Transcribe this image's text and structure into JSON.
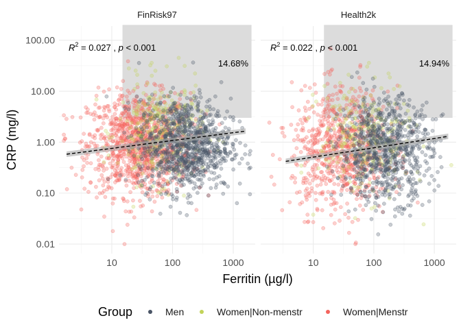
{
  "chart_data": {
    "type": "scatter",
    "x_scale": "log10",
    "y_scale": "log10",
    "xlabel": "Ferritin (µg/l)",
    "ylabel": "CRP (mg/l)",
    "x_ticks": [
      10,
      100,
      1000
    ],
    "x_tick_labels": [
      "10",
      "100",
      "1000"
    ],
    "y_ticks": [
      0.01,
      0.1,
      1,
      10,
      100
    ],
    "y_tick_labels": [
      "0.01",
      "0.10",
      "1.00",
      "10.00",
      "100.00"
    ],
    "xlim": [
      1.35,
      2300
    ],
    "ylim": [
      0.0065,
      190
    ],
    "grid": true,
    "legend": {
      "title": "Group",
      "position": "bottom",
      "entries": [
        {
          "label": "Men",
          "color": "#4a5566"
        },
        {
          "label": "Women|Non-menstr",
          "color": "#c2d35a"
        },
        {
          "label": "Women|Menstr",
          "color": "#f4645d"
        }
      ]
    },
    "highlight_region": {
      "x": [
        15,
        2000
      ],
      "y": [
        3,
        200
      ],
      "color": "#dcdcdc"
    },
    "panels": [
      {
        "title": "FinRisk97",
        "r2_label": "R",
        "r2_sup": "2",
        "r2_value": " = 0.027 , ",
        "p_label": "p",
        "p_value": " < 0.001",
        "highlight_percent": "14.68%",
        "trend": {
          "x": [
            1.8,
            1600
          ],
          "y": [
            0.58,
            1.65
          ]
        },
        "clouds": [
          {
            "group": "Women|Menstr",
            "n": 1100,
            "log_x_mean": 1.45,
            "log_x_sd": 0.42,
            "log_y_mean": -0.05,
            "log_y_sd": 0.5
          },
          {
            "group": "Women|Non-menstr",
            "n": 320,
            "log_x_mean": 1.8,
            "log_x_sd": 0.35,
            "log_y_mean": 0.2,
            "log_y_sd": 0.5
          },
          {
            "group": "Men",
            "n": 1050,
            "log_x_mean": 2.2,
            "log_x_sd": 0.38,
            "log_y_mean": -0.05,
            "log_y_sd": 0.45
          }
        ]
      },
      {
        "title": "Health2k",
        "r2_label": "R",
        "r2_sup": "2",
        "r2_value": " = 0.022 , ",
        "p_label": "p",
        "p_value": " < 0.001",
        "highlight_percent": "14.94%",
        "trend": {
          "x": [
            3.5,
            1700
          ],
          "y": [
            0.42,
            1.3
          ]
        },
        "clouds": [
          {
            "group": "Women|Menstr",
            "n": 750,
            "log_x_mean": 1.45,
            "log_x_sd": 0.4,
            "log_y_mean": -0.15,
            "log_y_sd": 0.6
          },
          {
            "group": "Women|Non-menstr",
            "n": 280,
            "log_x_mean": 1.85,
            "log_x_sd": 0.38,
            "log_y_mean": 0.05,
            "log_y_sd": 0.55
          },
          {
            "group": "Men",
            "n": 850,
            "log_x_mean": 2.2,
            "log_x_sd": 0.38,
            "log_y_mean": -0.15,
            "log_y_sd": 0.5
          }
        ]
      }
    ]
  }
}
